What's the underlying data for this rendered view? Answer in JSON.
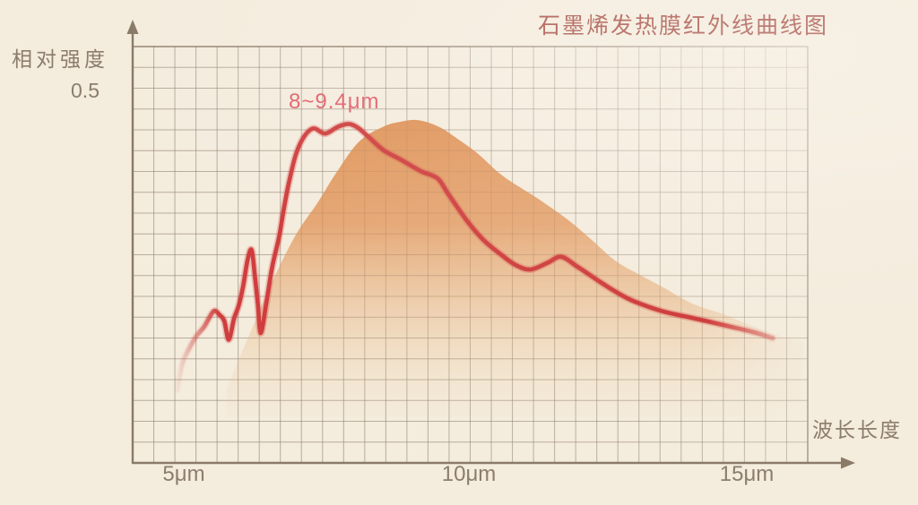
{
  "title": "石墨烯发热膜红外线曲线图",
  "y_axis": {
    "label": "相对强度",
    "tick_value": "0.5"
  },
  "x_axis": {
    "label": "波长长度",
    "ticks": [
      "5μm",
      "10μm",
      "15μm"
    ]
  },
  "annotation": {
    "text": "8~9.4μm"
  },
  "colors": {
    "background": "#f4ecdd",
    "title_text": "#ab574c",
    "axis_text": "#8c7d6c",
    "axis_line": "#8a7a68",
    "grid_line": "#7d6c5a",
    "curve_red": "#cf3e3e",
    "annotation_text": "#e2606b",
    "area_orange": "#df9356"
  },
  "chart_data": {
    "type": "line",
    "title": "石墨烯发热膜红外线曲线图",
    "xlabel": "波长长度",
    "ylabel": "相对强度",
    "x_unit": "μm",
    "xlim": [
      4.1,
      16.0
    ],
    "ylim": [
      0,
      0.56
    ],
    "y_reference_tick": 0.5,
    "x_ticks": [
      5,
      10,
      15
    ],
    "grid": true,
    "legend": false,
    "annotation": {
      "text": "8~9.4μm",
      "x_range": [
        8,
        9.4
      ]
    },
    "series": [
      {
        "name": "infrared-emission-curve",
        "style": "jagged line",
        "color": "#cf3e3e",
        "points": [
          [
            4.87,
            0.097
          ],
          [
            4.97,
            0.133
          ],
          [
            5.09,
            0.153
          ],
          [
            5.22,
            0.17
          ],
          [
            5.36,
            0.183
          ],
          [
            5.52,
            0.203
          ],
          [
            5.63,
            0.198
          ],
          [
            5.71,
            0.19
          ],
          [
            5.79,
            0.165
          ],
          [
            5.88,
            0.193
          ],
          [
            5.96,
            0.21
          ],
          [
            6.04,
            0.236
          ],
          [
            6.12,
            0.272
          ],
          [
            6.19,
            0.285
          ],
          [
            6.25,
            0.248
          ],
          [
            6.3,
            0.212
          ],
          [
            6.35,
            0.174
          ],
          [
            6.45,
            0.215
          ],
          [
            6.55,
            0.262
          ],
          [
            6.67,
            0.302
          ],
          [
            6.75,
            0.338
          ],
          [
            6.84,
            0.374
          ],
          [
            6.97,
            0.414
          ],
          [
            7.12,
            0.438
          ],
          [
            7.28,
            0.448
          ],
          [
            7.48,
            0.441
          ],
          [
            7.7,
            0.45
          ],
          [
            7.89,
            0.454
          ],
          [
            8.05,
            0.449
          ],
          [
            8.22,
            0.438
          ],
          [
            8.5,
            0.419
          ],
          [
            8.81,
            0.406
          ],
          [
            9.15,
            0.391
          ],
          [
            9.45,
            0.381
          ],
          [
            9.64,
            0.36
          ],
          [
            9.95,
            0.326
          ],
          [
            10.25,
            0.299
          ],
          [
            10.58,
            0.278
          ],
          [
            10.82,
            0.265
          ],
          [
            11.08,
            0.259
          ],
          [
            11.38,
            0.268
          ],
          [
            11.62,
            0.276
          ],
          [
            11.9,
            0.263
          ],
          [
            12.31,
            0.242
          ],
          [
            12.6,
            0.228
          ],
          [
            12.91,
            0.216
          ],
          [
            13.4,
            0.203
          ],
          [
            13.93,
            0.194
          ],
          [
            14.5,
            0.184
          ],
          [
            15.0,
            0.175
          ],
          [
            15.33,
            0.167
          ]
        ]
      },
      {
        "name": "emission-band-envelope",
        "style": "smooth filled area, gradient fading downward",
        "color": "#df9356",
        "points": [
          [
            5.75,
            0.097
          ],
          [
            5.99,
            0.143
          ],
          [
            6.26,
            0.191
          ],
          [
            6.57,
            0.246
          ],
          [
            6.97,
            0.306
          ],
          [
            7.36,
            0.35
          ],
          [
            7.67,
            0.388
          ],
          [
            8.07,
            0.43
          ],
          [
            8.49,
            0.45
          ],
          [
            8.81,
            0.457
          ],
          [
            9.12,
            0.459
          ],
          [
            9.48,
            0.45
          ],
          [
            9.8,
            0.434
          ],
          [
            10.16,
            0.414
          ],
          [
            10.55,
            0.387
          ],
          [
            10.94,
            0.367
          ],
          [
            11.21,
            0.354
          ],
          [
            11.73,
            0.326
          ],
          [
            12.15,
            0.299
          ],
          [
            12.58,
            0.27
          ],
          [
            13.02,
            0.251
          ],
          [
            13.41,
            0.235
          ],
          [
            13.93,
            0.213
          ],
          [
            14.47,
            0.199
          ],
          [
            14.98,
            0.183
          ],
          [
            15.5,
            0.169
          ],
          [
            15.85,
            0.162
          ]
        ]
      }
    ]
  }
}
